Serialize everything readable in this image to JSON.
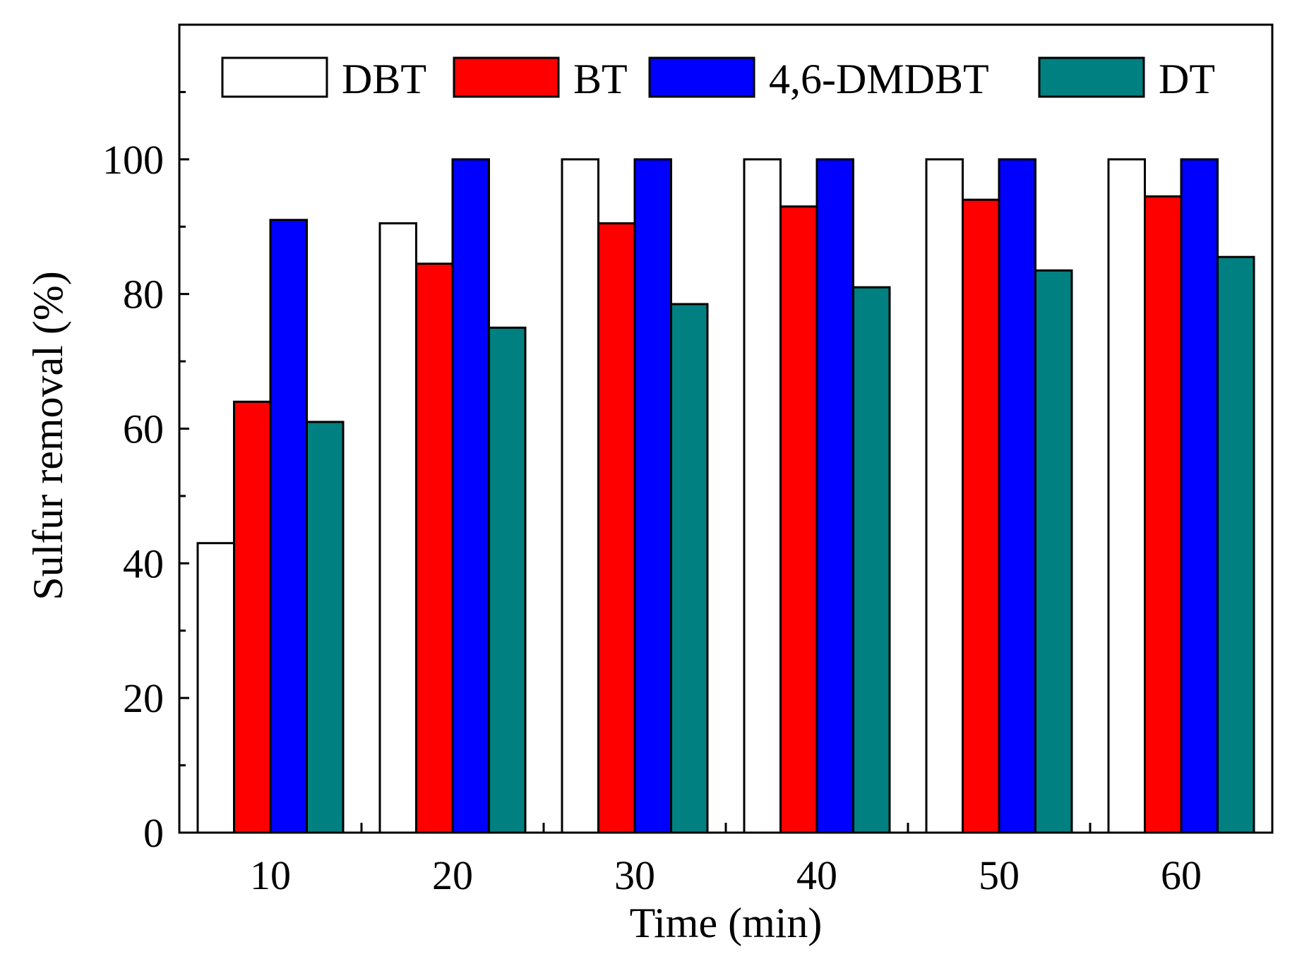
{
  "chart_data": {
    "type": "bar",
    "title": "",
    "xlabel": "Time (min)",
    "ylabel": "Sulfur removal (%)",
    "categories": [
      "10",
      "20",
      "30",
      "40",
      "50",
      "60"
    ],
    "ylim": [
      0,
      120
    ],
    "yticks": [
      "0",
      "20",
      "40",
      "60",
      "80",
      "100"
    ],
    "grid": false,
    "legend_position": "top",
    "series": [
      {
        "name": "DBT",
        "color": "#ffffff",
        "values": [
          43,
          90.5,
          100,
          100,
          100,
          100
        ]
      },
      {
        "name": "BT",
        "color": "#ff0000",
        "values": [
          64,
          84.5,
          90.5,
          93,
          94,
          94.5
        ]
      },
      {
        "name": "4,6-DMDBT",
        "color": "#0000ff",
        "values": [
          91,
          100,
          100,
          100,
          100,
          100
        ]
      },
      {
        "name": "DT",
        "color": "#008080",
        "values": [
          61,
          75,
          78.5,
          81,
          83.5,
          85.5
        ]
      }
    ]
  }
}
